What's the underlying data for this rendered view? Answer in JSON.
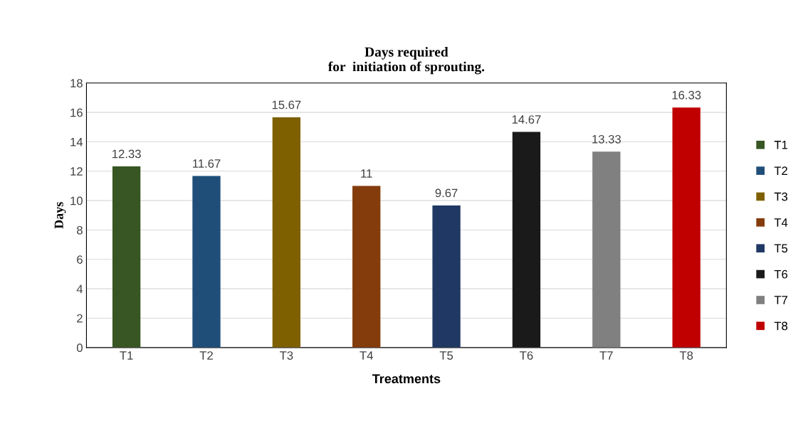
{
  "chart_data": {
    "type": "bar",
    "title": "Days required\nfor  initiation of sprouting.",
    "xlabel": "Treatments",
    "ylabel": "Days",
    "categories": [
      "T1",
      "T2",
      "T3",
      "T4",
      "T5",
      "T6",
      "T7",
      "T8"
    ],
    "series": [
      {
        "name": "T1",
        "color": "#375623",
        "values": [
          12.33,
          null,
          null,
          null,
          null,
          null,
          null,
          null
        ]
      },
      {
        "name": "T2",
        "color": "#1f4e79",
        "values": [
          null,
          11.67,
          null,
          null,
          null,
          null,
          null,
          null
        ]
      },
      {
        "name": "T3",
        "color": "#7f6000",
        "values": [
          null,
          null,
          15.67,
          null,
          null,
          null,
          null,
          null
        ]
      },
      {
        "name": "T4",
        "color": "#843c0c",
        "values": [
          null,
          null,
          null,
          11,
          null,
          null,
          null,
          null
        ]
      },
      {
        "name": "T5",
        "color": "#203864",
        "values": [
          null,
          null,
          null,
          null,
          9.67,
          null,
          null,
          null
        ]
      },
      {
        "name": "T6",
        "color": "#1a1a1a",
        "values": [
          null,
          null,
          null,
          null,
          null,
          14.67,
          null,
          null
        ]
      },
      {
        "name": "T7",
        "color": "#808080",
        "values": [
          null,
          null,
          null,
          null,
          null,
          null,
          13.33,
          null
        ]
      },
      {
        "name": "T8",
        "color": "#c00000",
        "values": [
          null,
          null,
          null,
          null,
          null,
          null,
          null,
          16.33
        ]
      }
    ],
    "ylim": [
      0,
      18
    ],
    "yticks": [
      0,
      2,
      4,
      6,
      8,
      10,
      12,
      14,
      16,
      18
    ],
    "grid": "y",
    "legend": "right",
    "data_labels": true
  }
}
